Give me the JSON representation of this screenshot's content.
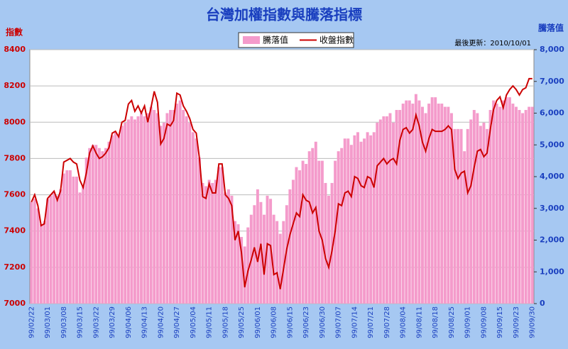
{
  "chart_data": {
    "type": "bar",
    "title": "台灣加權指數與騰落指標",
    "y_label": "指數",
    "y2_label": "騰落值",
    "annotation": "最後更新：2010/10/01",
    "categories": [
      "99/02/22",
      null,
      null,
      null,
      null,
      "99/03/01",
      null,
      null,
      null,
      null,
      "99/03/08",
      null,
      null,
      null,
      null,
      "99/03/15",
      null,
      null,
      null,
      null,
      "99/03/22",
      null,
      null,
      null,
      null,
      "99/03/29",
      null,
      null,
      null,
      null,
      "99/04/06",
      null,
      null,
      null,
      null,
      "99/04/13",
      null,
      null,
      null,
      null,
      "99/04/20",
      null,
      null,
      null,
      null,
      "99/04/27",
      null,
      null,
      null,
      null,
      "99/05/04",
      null,
      null,
      null,
      null,
      "99/05/11",
      null,
      null,
      null,
      null,
      "99/05/18",
      null,
      null,
      null,
      null,
      "99/05/25",
      null,
      null,
      null,
      null,
      "99/06/01",
      null,
      null,
      null,
      null,
      "99/06/08",
      null,
      null,
      null,
      null,
      "99/06/15",
      null,
      null,
      null,
      null,
      "99/06/23",
      null,
      null,
      null,
      null,
      "99/06/30",
      null,
      null,
      null,
      null,
      "99/07/07",
      null,
      null,
      null,
      null,
      "99/07/14",
      null,
      null,
      null,
      null,
      "99/07/21",
      null,
      null,
      null,
      null,
      "99/07/28",
      null,
      null,
      null,
      null,
      "99/08/04",
      null,
      null,
      null,
      null,
      "99/08/11",
      null,
      null,
      null,
      null,
      "99/08/18",
      null,
      null,
      null,
      null,
      "99/08/25",
      null,
      null,
      null,
      null,
      "99/09/01",
      null,
      null,
      null,
      null,
      "99/09/08",
      null,
      null,
      null,
      null,
      "99/09/15",
      null,
      null,
      null,
      null,
      "99/09/23",
      null,
      null,
      null,
      null,
      "99/09/30"
    ],
    "series": [
      {
        "name": "騰落值",
        "type": "bar",
        "axis": "y2",
        "color": "#f49bcb",
        "values": [
          3200,
          3300,
          3000,
          2500,
          2600,
          3300,
          3400,
          3500,
          3400,
          3600,
          4100,
          4200,
          4200,
          4000,
          4000,
          3500,
          3700,
          4600,
          4900,
          5000,
          5000,
          4900,
          4800,
          4900,
          5100,
          5300,
          5400,
          5300,
          5600,
          5700,
          5800,
          5900,
          5800,
          5900,
          6000,
          5900,
          6000,
          6200,
          6100,
          6000,
          5600,
          5700,
          6000,
          6100,
          6100,
          6300,
          6400,
          6100,
          5900,
          5700,
          5400,
          5200,
          4600,
          3800,
          3700,
          3900,
          3800,
          3900,
          4300,
          4300,
          3500,
          3600,
          3400,
          2600,
          2500,
          2100,
          1800,
          2400,
          2800,
          3100,
          3600,
          3200,
          2800,
          3400,
          3300,
          2800,
          2600,
          2200,
          2600,
          3100,
          3600,
          3900,
          4300,
          4200,
          4500,
          4400,
          4800,
          4900,
          5100,
          4500,
          4500,
          3800,
          3400,
          3800,
          4500,
          4800,
          4900,
          5200,
          5200,
          5000,
          5300,
          5400,
          5100,
          5200,
          5400,
          5300,
          5400,
          5700,
          5800,
          5900,
          5900,
          6000,
          5700,
          6100,
          6100,
          6300,
          6400,
          6400,
          6300,
          6600,
          6400,
          6200,
          6000,
          6300,
          6500,
          6500,
          6300,
          6300,
          6200,
          6200,
          6000,
          5500,
          5500,
          5500,
          4800,
          5500,
          5800,
          6100,
          6000,
          5600,
          5700,
          5500,
          6100,
          6400,
          6300,
          6200,
          6400,
          6500,
          6500,
          6300,
          6200,
          6100,
          6000,
          6100,
          6200,
          6200
        ]
      },
      {
        "name": "收盤指數",
        "type": "line",
        "axis": "y",
        "color": "#cc0000",
        "values": [
          7560,
          7600,
          7540,
          7430,
          7440,
          7580,
          7600,
          7620,
          7570,
          7620,
          7780,
          7790,
          7800,
          7780,
          7770,
          7680,
          7640,
          7720,
          7830,
          7870,
          7830,
          7800,
          7810,
          7830,
          7860,
          7940,
          7950,
          7920,
          8000,
          8010,
          8100,
          8120,
          8060,
          8090,
          8050,
          8090,
          8000,
          8080,
          8170,
          8110,
          7880,
          7910,
          7990,
          7980,
          8010,
          8160,
          8150,
          8090,
          8060,
          8020,
          7960,
          7940,
          7800,
          7590,
          7580,
          7660,
          7610,
          7610,
          7770,
          7770,
          7600,
          7580,
          7540,
          7350,
          7400,
          7280,
          7090,
          7180,
          7240,
          7310,
          7230,
          7330,
          7160,
          7330,
          7320,
          7160,
          7170,
          7080,
          7190,
          7300,
          7380,
          7440,
          7500,
          7480,
          7600,
          7570,
          7560,
          7500,
          7530,
          7400,
          7350,
          7250,
          7200,
          7290,
          7400,
          7550,
          7540,
          7610,
          7620,
          7590,
          7700,
          7690,
          7650,
          7640,
          7700,
          7690,
          7640,
          7760,
          7780,
          7800,
          7770,
          7790,
          7800,
          7770,
          7900,
          7960,
          7970,
          7940,
          7960,
          8040,
          7980,
          7890,
          7840,
          7910,
          7960,
          7950,
          7950,
          7950,
          7960,
          7980,
          7960,
          7740,
          7690,
          7720,
          7730,
          7610,
          7650,
          7750,
          7840,
          7850,
          7810,
          7830,
          7960,
          8070,
          8120,
          8140,
          8080,
          8150,
          8180,
          8200,
          8180,
          8150,
          8180,
          8190,
          8240,
          8240
        ]
      }
    ],
    "ylim": [
      7000,
      8400
    ],
    "yticks": [
      7000,
      7200,
      7400,
      7600,
      7800,
      8000,
      8200,
      8400
    ],
    "y2lim": [
      0,
      8000
    ],
    "y2ticks": [
      0,
      {
        "value": 1000,
        "label": "1,000"
      },
      {
        "value": 2000,
        "label": "2,000"
      },
      {
        "value": 3000,
        "label": "3,000"
      },
      {
        "value": 4000,
        "label": "4,000"
      },
      {
        "value": 5000,
        "label": "5,000"
      },
      {
        "value": 6000,
        "label": "6,000"
      },
      {
        "value": 7000,
        "label": "7,000"
      },
      {
        "value": 8000,
        "label": "8,000"
      }
    ],
    "grid": true
  }
}
